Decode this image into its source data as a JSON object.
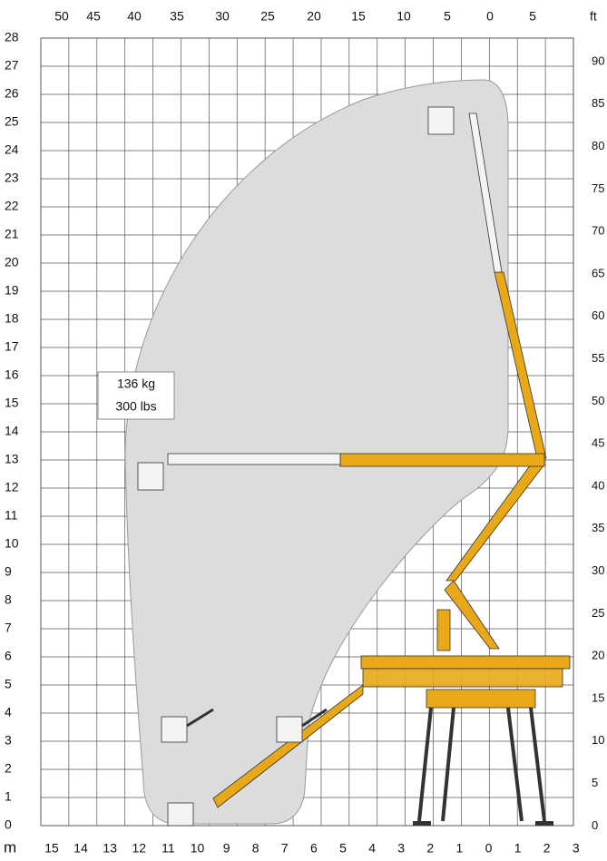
{
  "axes": {
    "ft_unit": "ft",
    "m_unit": "m",
    "ft_top": [
      50,
      45,
      40,
      35,
      30,
      25,
      20,
      15,
      10,
      5,
      0,
      5
    ],
    "ft_right": [
      90,
      85,
      80,
      75,
      70,
      65,
      60,
      55,
      50,
      45,
      40,
      35,
      30,
      25,
      20,
      15,
      10,
      5,
      0
    ],
    "m_left": [
      28,
      27,
      26,
      25,
      24,
      23,
      22,
      21,
      20,
      19,
      18,
      17,
      16,
      15,
      14,
      13,
      12,
      11,
      10,
      9,
      8,
      7,
      6,
      5,
      4,
      3,
      2,
      1,
      0
    ],
    "m_bottom": [
      15,
      14,
      13,
      12,
      11,
      10,
      9,
      8,
      7,
      6,
      5,
      4,
      3,
      2,
      1,
      0,
      1,
      2,
      3
    ]
  },
  "load": {
    "kg": "136 kg",
    "lbs": "300 lbs"
  }
}
